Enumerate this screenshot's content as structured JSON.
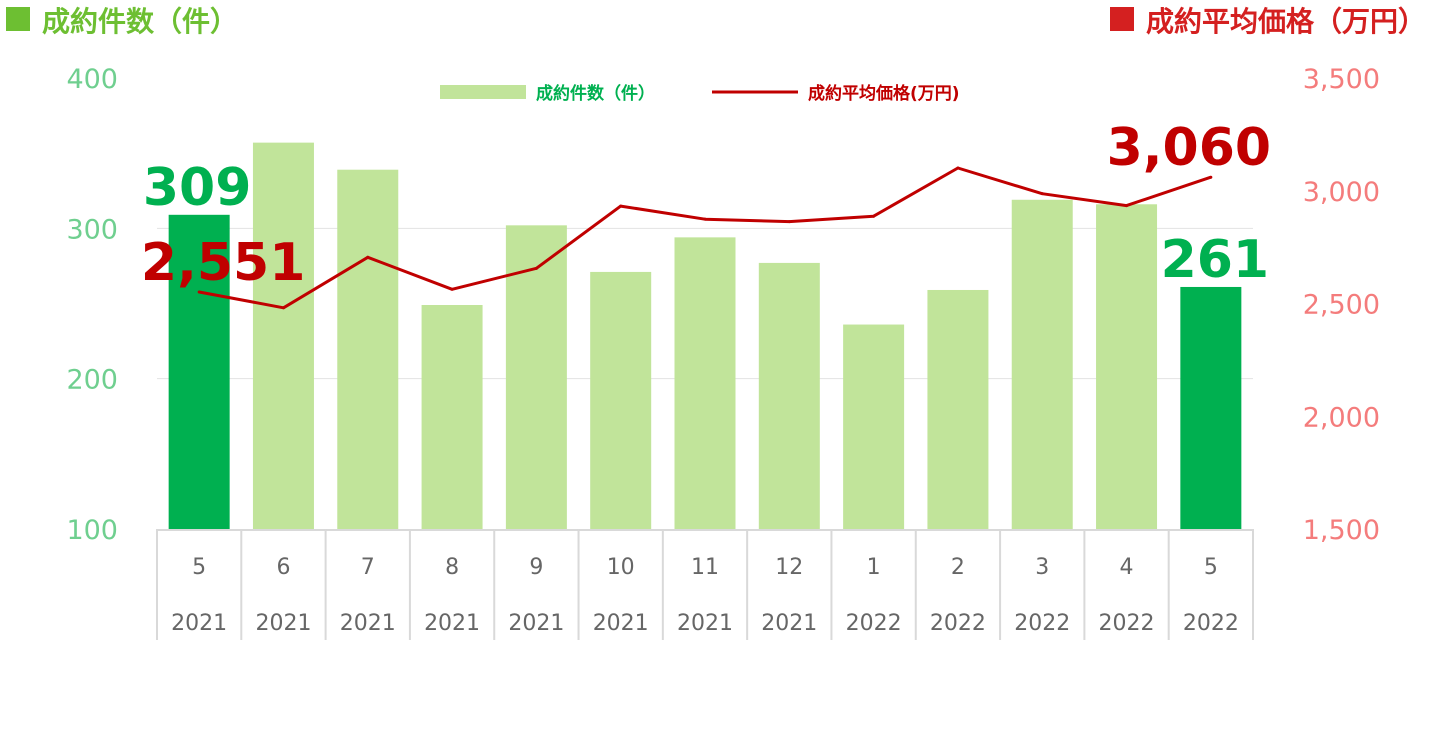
{
  "header": {
    "left_title": "成約件数（件）",
    "right_title": "成約平均価格（万円）"
  },
  "colors": {
    "bar_default": "#c1e49a",
    "bar_highlight": "#00b050",
    "line": "#c00000",
    "left_axis": "#6fcf8f",
    "right_axis": "#f47c7c",
    "left_marker": "#6dbf32",
    "right_marker": "#d42020",
    "label_green": "#00b050",
    "label_red": "#c00000"
  },
  "chart_data": {
    "type": "bar",
    "categories": [
      {
        "month": "5",
        "year": "2021"
      },
      {
        "month": "6",
        "year": "2021"
      },
      {
        "month": "7",
        "year": "2021"
      },
      {
        "month": "8",
        "year": "2021"
      },
      {
        "month": "9",
        "year": "2021"
      },
      {
        "month": "10",
        "year": "2021"
      },
      {
        "month": "11",
        "year": "2021"
      },
      {
        "month": "12",
        "year": "2021"
      },
      {
        "month": "1",
        "year": "2022"
      },
      {
        "month": "2",
        "year": "2022"
      },
      {
        "month": "3",
        "year": "2022"
      },
      {
        "month": "4",
        "year": "2022"
      },
      {
        "month": "5",
        "year": "2022"
      }
    ],
    "series": [
      {
        "name": "成約件数（件）",
        "type": "bar",
        "axis": "left",
        "values": [
          309,
          357,
          339,
          249,
          302,
          271,
          294,
          277,
          236,
          259,
          319,
          316,
          261
        ],
        "highlight": [
          true,
          false,
          false,
          false,
          false,
          false,
          false,
          false,
          false,
          false,
          false,
          false,
          true
        ]
      },
      {
        "name": "成約平均価格(万円)",
        "type": "line",
        "axis": "right",
        "values": [
          2551,
          2481,
          2705,
          2563,
          2656,
          2932,
          2874,
          2863,
          2887,
          3101,
          2987,
          2934,
          3060
        ]
      }
    ],
    "left_axis": {
      "ylim": [
        100,
        400
      ],
      "ticks": [
        "100",
        "200",
        "300",
        "400"
      ]
    },
    "right_axis": {
      "ylim": [
        1500,
        3500
      ],
      "ticks": [
        "1,500",
        "2,000",
        "2,500",
        "3,000",
        "3,500"
      ]
    },
    "data_labels": [
      {
        "series": 0,
        "index": 0,
        "text": "309"
      },
      {
        "series": 0,
        "index": 12,
        "text": "261"
      },
      {
        "series": 1,
        "index": 0,
        "text": "2,551"
      },
      {
        "series": 1,
        "index": 12,
        "text": "3,060"
      }
    ],
    "legend": {
      "position": "top-center",
      "bar_label": "成約件数（件）",
      "line_label": "成約平均価格(万円)"
    },
    "grid": true
  }
}
